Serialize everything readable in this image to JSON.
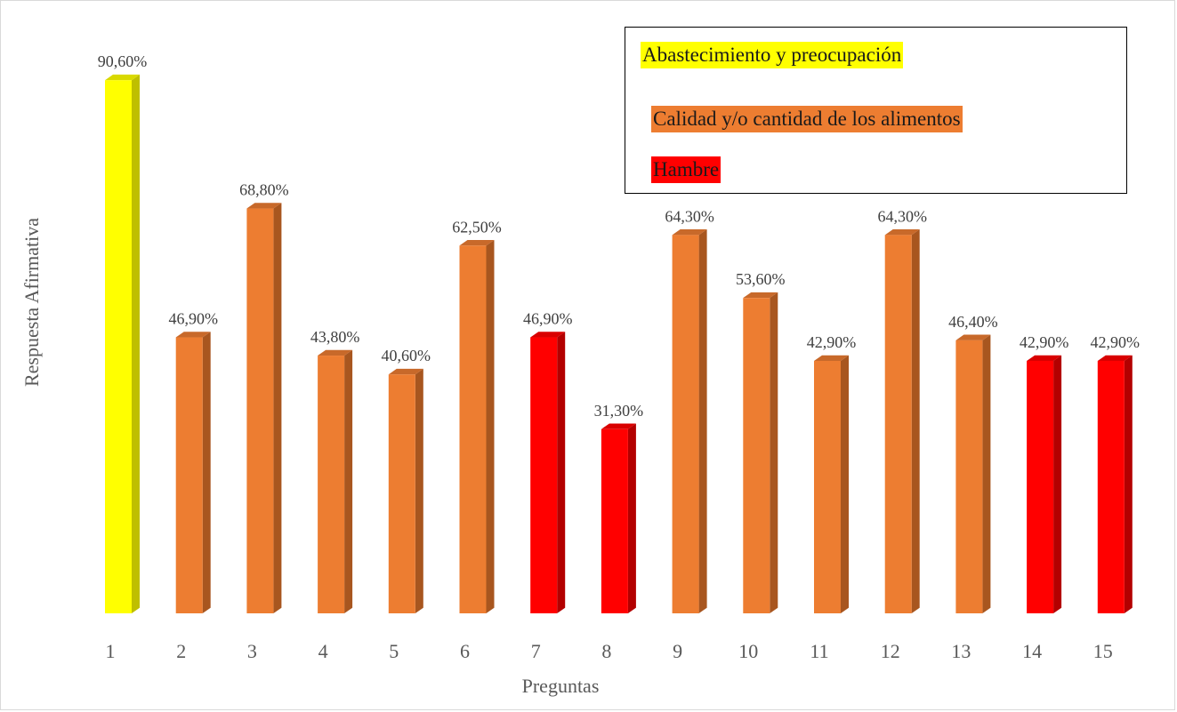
{
  "chart_data": {
    "type": "bar",
    "xlabel": "Preguntas",
    "ylabel": "Respuesta Afirmativa",
    "categories": [
      "1",
      "2",
      "3",
      "4",
      "5",
      "6",
      "7",
      "8",
      "9",
      "10",
      "11",
      "12",
      "13",
      "14",
      "15"
    ],
    "values": [
      90.6,
      46.9,
      68.8,
      43.8,
      40.6,
      62.5,
      46.9,
      31.3,
      64.3,
      53.6,
      42.9,
      64.3,
      46.4,
      42.9,
      42.9
    ],
    "value_labels": [
      "90,60%",
      "46,90%",
      "68,80%",
      "43,80%",
      "40,60%",
      "62,50%",
      "46,90%",
      "31,30%",
      "64,30%",
      "53,60%",
      "42,90%",
      "64,30%",
      "46,40%",
      "42,90%",
      "42,90%"
    ],
    "bar_groups": [
      "abastecimiento",
      "calidad",
      "calidad",
      "calidad",
      "calidad",
      "calidad",
      "hambre",
      "hambre",
      "calidad",
      "calidad",
      "calidad",
      "calidad",
      "calidad",
      "hambre",
      "hambre"
    ],
    "ylim": [
      0,
      100
    ],
    "grid": false,
    "legend_position": "top-right",
    "legend": [
      {
        "key": "abastecimiento",
        "label": "Abastecimiento y preocupación",
        "color": "#ffff00"
      },
      {
        "key": "calidad",
        "label": "Calidad y/o cantidad de los alimentos",
        "color": "#ed7d31"
      },
      {
        "key": "hambre",
        "label": "Hambre",
        "color": "#ff0000"
      }
    ],
    "colors": {
      "abastecimiento": {
        "front": "#ffff00",
        "side": "#bfbf00",
        "top": "#d9d900"
      },
      "calidad": {
        "front": "#ed7d31",
        "side": "#a8561f",
        "top": "#c8692a"
      },
      "hambre": {
        "front": "#ff0000",
        "side": "#b30000",
        "top": "#d90000"
      }
    }
  }
}
